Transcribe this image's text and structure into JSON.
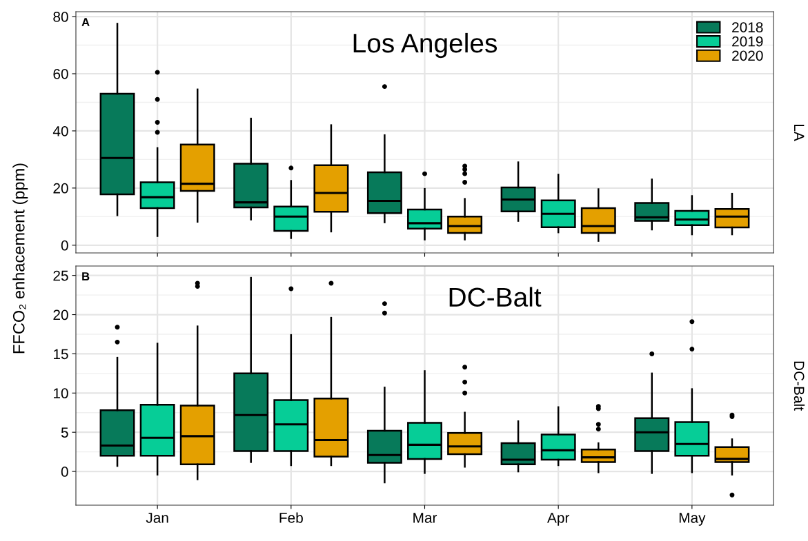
{
  "chart_data": [
    {
      "type": "box",
      "ylabel": "FFCO₂ enhacement (ppm)",
      "annotations": [
        "A",
        "Los Angeles",
        "LA"
      ],
      "categories": [
        null,
        null,
        null,
        null,
        null
      ],
      "ylim": [
        -2.7,
        81.7
      ],
      "yticks": [
        0,
        20,
        40,
        60,
        80
      ],
      "grid": true,
      "legend": "top right",
      "tick_labels": "y",
      "series": [
        {
          "name": "2018",
          "color": "#077a5a",
          "boxes": [
            {
              "low": 10.5,
              "q1": 17.8,
              "median": 30.5,
              "q3": 53,
              "high": 77.5
            },
            {
              "low": 9,
              "q1": 13.2,
              "median": 15,
              "q3": 28.5,
              "high": 44.3
            },
            {
              "low": 8,
              "q1": 11.2,
              "median": 15.5,
              "q3": 25.5,
              "high": 38.5,
              "outliers": [
                55.5
              ]
            },
            {
              "low": 8.5,
              "q1": 11.8,
              "median": 16,
              "q3": 20.2,
              "high": 29
            },
            {
              "low": 5.5,
              "q1": 8.5,
              "median": 9.8,
              "q3": 14.8,
              "high": 23
            }
          ]
        },
        {
          "name": "2019",
          "color": "#06cd97",
          "boxes": [
            {
              "low": 3.2,
              "q1": 13,
              "median": 16.8,
              "q3": 22,
              "high": 34,
              "outliers": [
                39.5,
                43,
                51,
                60.5
              ]
            },
            {
              "low": 2.5,
              "q1": 5,
              "median": 10,
              "q3": 13.5,
              "high": 22.5,
              "outliers": [
                27
              ]
            },
            {
              "low": 2,
              "q1": 5.8,
              "median": 7.7,
              "q3": 12.5,
              "high": 19.7,
              "outliers": [
                25
              ]
            },
            {
              "low": 4.5,
              "q1": 6.3,
              "median": 11,
              "q3": 15.7,
              "high": 24.7
            },
            {
              "low": 3.8,
              "q1": 7,
              "median": 9,
              "q3": 12,
              "high": 17.2
            }
          ]
        },
        {
          "name": "2020",
          "color": "#e4a000",
          "boxes": [
            {
              "low": 8.2,
              "q1": 19,
              "median": 21.5,
              "q3": 35.2,
              "high": 54.5
            },
            {
              "low": 4.8,
              "q1": 11.7,
              "median": 18.3,
              "q3": 28,
              "high": 42
            },
            {
              "low": 2,
              "q1": 4.3,
              "median": 6.7,
              "q3": 10,
              "high": 16.2,
              "outliers": [
                22,
                25,
                26.5,
                27.7
              ]
            },
            {
              "low": 1.5,
              "q1": 4.3,
              "median": 6.7,
              "q3": 13,
              "high": 19.6
            },
            {
              "low": 3.8,
              "q1": 6.2,
              "median": 10,
              "q3": 12.7,
              "high": 18
            }
          ]
        }
      ]
    },
    {
      "type": "box",
      "annotations": [
        "B",
        "DC-Balt",
        "DC-Balt"
      ],
      "categories": [
        "Jan",
        "Feb",
        "Mar",
        "Apr",
        "May"
      ],
      "ylim": [
        -4.3,
        26.2
      ],
      "yticks": [
        0,
        5,
        10,
        15,
        20,
        25
      ],
      "grid": true,
      "series": [
        {
          "color": "#077a5a",
          "boxes": [
            {
              "low": 0.7,
              "q1": 2,
              "median": 3.3,
              "q3": 7.8,
              "high": 14.5,
              "outliers": [
                16.5,
                18.4
              ]
            },
            {
              "low": 1.2,
              "q1": 2.6,
              "median": 7.2,
              "q3": 12.5,
              "high": 24.7
            },
            {
              "low": -1.4,
              "q1": 1.1,
              "median": 2.1,
              "q3": 5.2,
              "high": 10.7,
              "outliers": [
                20.2,
                21.4
              ]
            },
            {
              "low": 0,
              "q1": 0.9,
              "median": 1.5,
              "q3": 3.6,
              "high": 6.4
            },
            {
              "low": -0.2,
              "q1": 2.6,
              "median": 5,
              "q3": 6.8,
              "high": 12.5,
              "outliers": [
                15
              ]
            }
          ]
        },
        {
          "color": "#06cd97",
          "boxes": [
            {
              "low": -0.4,
              "q1": 2,
              "median": 4.3,
              "q3": 8.5,
              "high": 16.3
            },
            {
              "low": 0.8,
              "q1": 2.6,
              "median": 6,
              "q3": 9.1,
              "high": 17.4,
              "outliers": [
                23.3
              ]
            },
            {
              "low": -0.2,
              "q1": 1.6,
              "median": 3.4,
              "q3": 6.2,
              "high": 12.8
            },
            {
              "low": 0.8,
              "q1": 1.5,
              "median": 2.7,
              "q3": 4.7,
              "high": 8.2
            },
            {
              "low": -0.1,
              "q1": 2,
              "median": 3.5,
              "q3": 6.3,
              "high": 10.5,
              "outliers": [
                15.6,
                19.1
              ]
            }
          ]
        },
        {
          "color": "#e4a000",
          "boxes": [
            {
              "low": -1,
              "q1": 0.9,
              "median": 4.5,
              "q3": 8.4,
              "high": 18.5,
              "outliers": [
                23.6,
                24
              ]
            },
            {
              "low": 0.8,
              "q1": 1.9,
              "median": 4,
              "q3": 9.3,
              "high": 19.6,
              "outliers": [
                24
              ]
            },
            {
              "low": 0.6,
              "q1": 2.2,
              "median": 3.2,
              "q3": 4.9,
              "high": 7.5,
              "outliers": [
                10,
                11.4,
                13.3
              ]
            },
            {
              "low": -0.1,
              "q1": 1.2,
              "median": 1.8,
              "q3": 2.8,
              "high": 3.6,
              "outliers": [
                5.4,
                6,
                8,
                8.3
              ]
            },
            {
              "low": -0.4,
              "q1": 1.2,
              "median": 1.6,
              "q3": 3.1,
              "high": 4.1,
              "outliers": [
                -3,
                7,
                7.2
              ]
            }
          ]
        }
      ]
    }
  ]
}
